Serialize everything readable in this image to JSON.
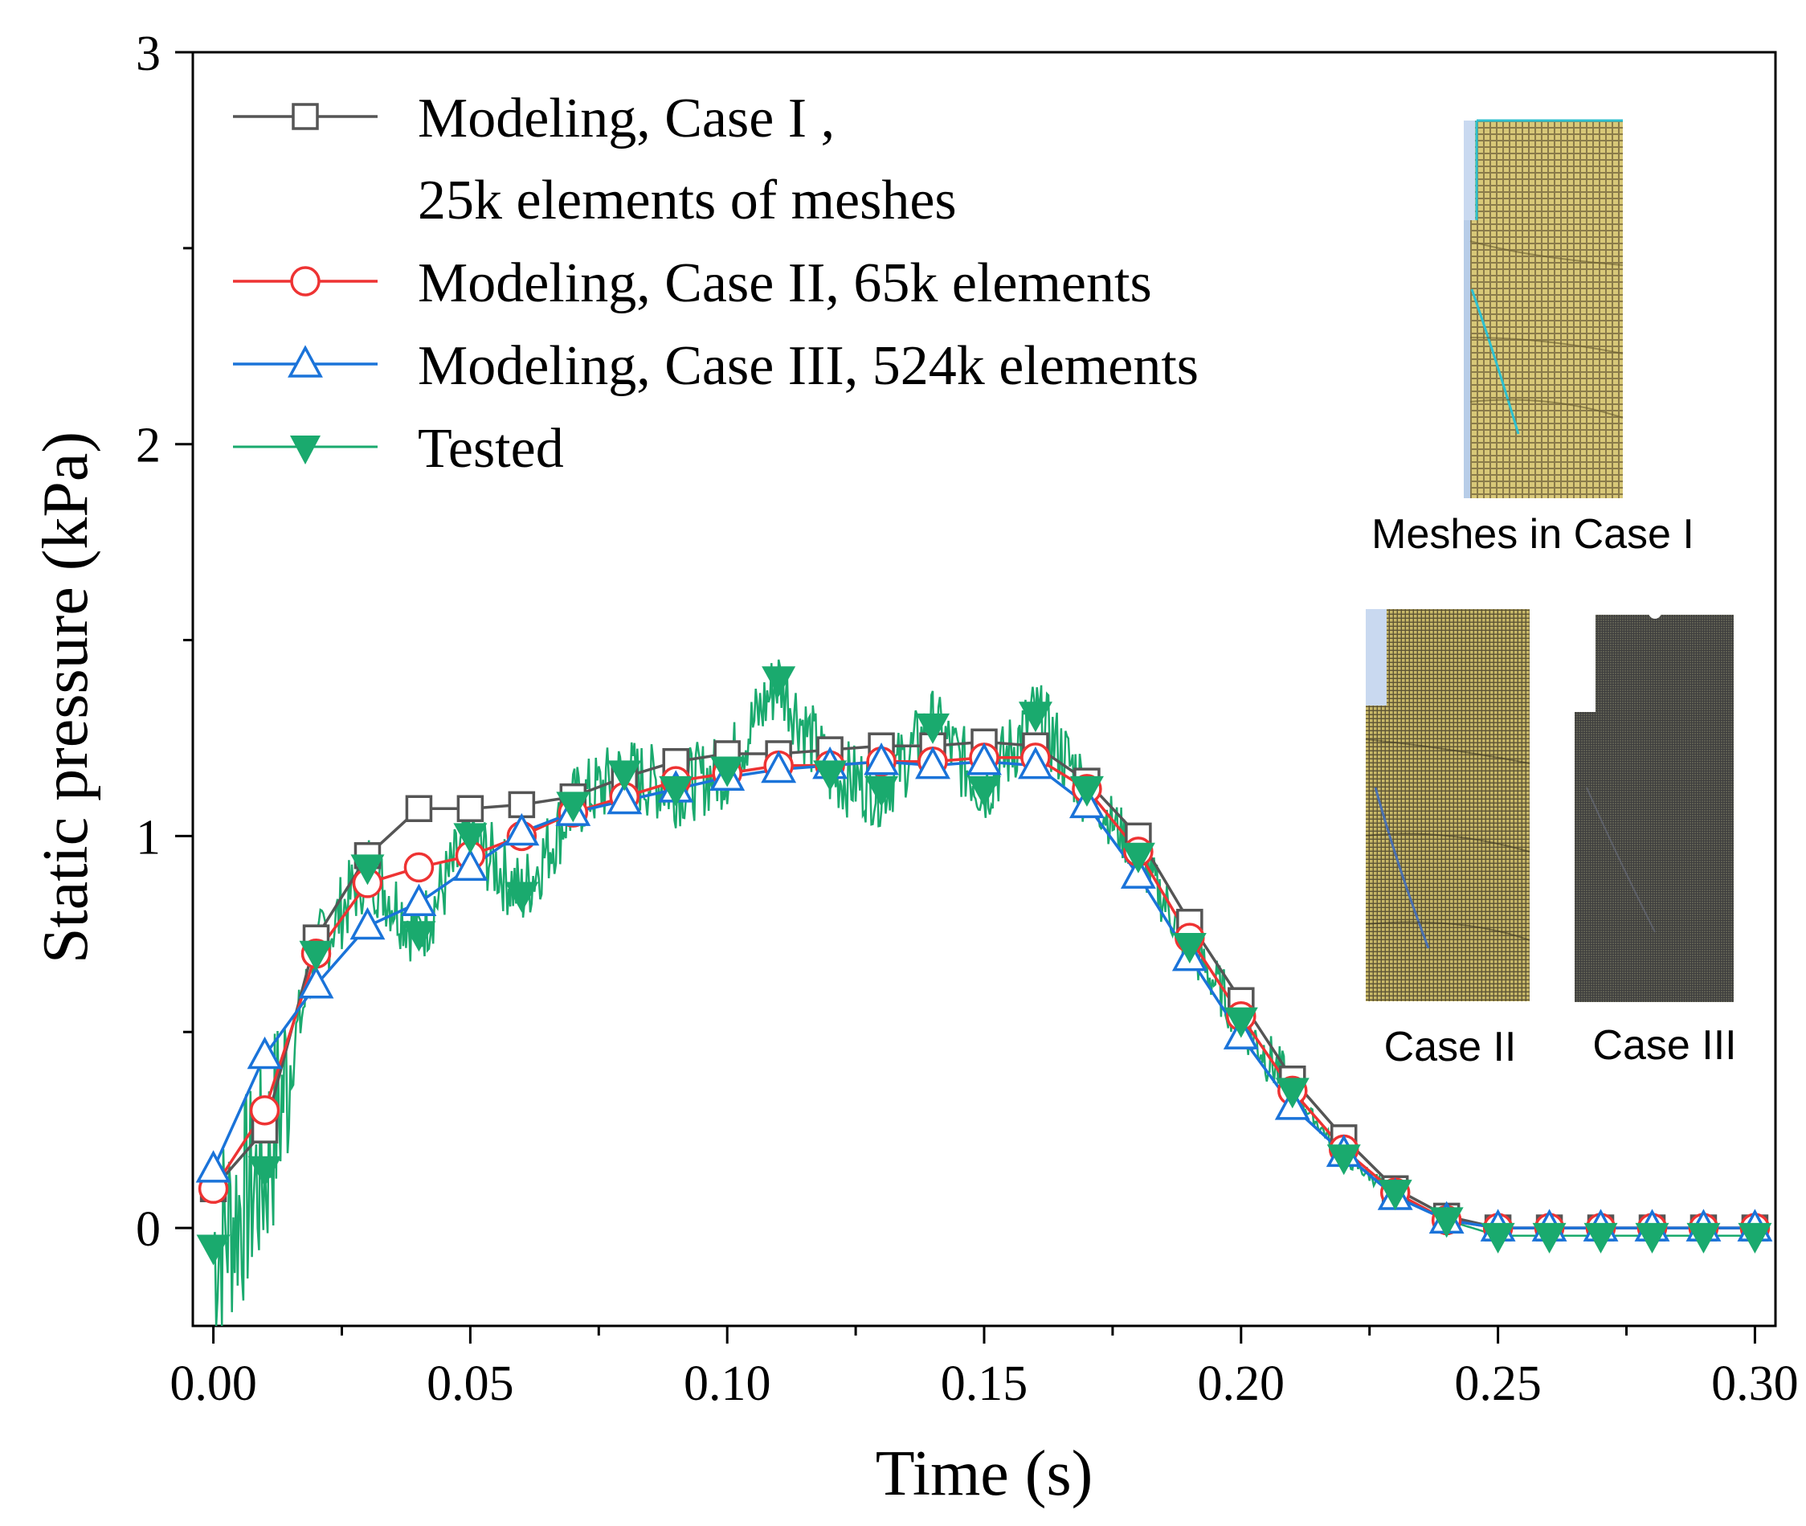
{
  "chart_data": {
    "type": "line",
    "xlabel": "Time (s)",
    "ylabel": "Static pressure (kPa)",
    "xlim": [
      -0.004,
      0.304
    ],
    "ylim": [
      -0.25,
      3.0
    ],
    "xticks": [
      0.0,
      0.05,
      0.1,
      0.15,
      0.2,
      0.25,
      0.3
    ],
    "xtick_labels": [
      "0.00",
      "0.05",
      "0.10",
      "0.15",
      "0.20",
      "0.25",
      "0.30"
    ],
    "yticks": [
      0,
      1,
      2,
      3
    ],
    "ytick_labels": [
      "0",
      "1",
      "2",
      "3"
    ],
    "legend_position": "top-left",
    "series": [
      {
        "name": "Modeling, Case I ,",
        "name_line2": "25k elements of meshes",
        "color": "#555555",
        "marker": "square",
        "x": [
          0.0,
          0.01,
          0.02,
          0.03,
          0.04,
          0.05,
          0.06,
          0.07,
          0.08,
          0.09,
          0.1,
          0.11,
          0.12,
          0.13,
          0.14,
          0.15,
          0.16,
          0.17,
          0.18,
          0.19,
          0.2,
          0.21,
          0.22,
          0.23,
          0.24,
          0.25,
          0.26,
          0.27,
          0.28,
          0.29,
          0.3
        ],
        "y": [
          0.1,
          0.25,
          0.74,
          0.95,
          1.07,
          1.07,
          1.08,
          1.1,
          1.15,
          1.19,
          1.21,
          1.21,
          1.22,
          1.23,
          1.23,
          1.24,
          1.23,
          1.14,
          1.0,
          0.78,
          0.58,
          0.38,
          0.23,
          0.1,
          0.03,
          0.0,
          0.0,
          0.0,
          0.0,
          0.0,
          0.0
        ]
      },
      {
        "name": "Modeling, Case II, 65k elements",
        "color": "#ee3333",
        "marker": "circle",
        "x": [
          0.0,
          0.01,
          0.02,
          0.03,
          0.04,
          0.05,
          0.06,
          0.07,
          0.08,
          0.09,
          0.1,
          0.11,
          0.12,
          0.13,
          0.14,
          0.15,
          0.16,
          0.17,
          0.18,
          0.19,
          0.2,
          0.21,
          0.22,
          0.23,
          0.24,
          0.25,
          0.26,
          0.27,
          0.28,
          0.29,
          0.3
        ],
        "y": [
          0.1,
          0.3,
          0.7,
          0.88,
          0.92,
          0.95,
          1.0,
          1.06,
          1.1,
          1.14,
          1.16,
          1.18,
          1.18,
          1.19,
          1.19,
          1.2,
          1.2,
          1.12,
          0.96,
          0.74,
          0.54,
          0.35,
          0.2,
          0.09,
          0.02,
          0.0,
          0.0,
          0.0,
          0.0,
          0.0,
          0.0
        ]
      },
      {
        "name": "Modeling, Case III, 524k elements",
        "color": "#1a73d9",
        "marker": "triangle-up",
        "x": [
          0.0,
          0.01,
          0.02,
          0.03,
          0.04,
          0.05,
          0.06,
          0.07,
          0.08,
          0.09,
          0.1,
          0.11,
          0.12,
          0.13,
          0.14,
          0.15,
          0.16,
          0.17,
          0.18,
          0.19,
          0.2,
          0.21,
          0.22,
          0.23,
          0.24,
          0.25,
          0.26,
          0.27,
          0.28,
          0.29,
          0.3
        ],
        "y": [
          0.15,
          0.44,
          0.62,
          0.77,
          0.83,
          0.92,
          1.01,
          1.06,
          1.09,
          1.12,
          1.15,
          1.17,
          1.18,
          1.19,
          1.18,
          1.19,
          1.18,
          1.08,
          0.9,
          0.69,
          0.49,
          0.31,
          0.19,
          0.08,
          0.02,
          0.0,
          0.0,
          0.0,
          0.0,
          0.0,
          0.0
        ]
      },
      {
        "name": "Tested",
        "color": "#1aaa6e",
        "marker": "triangle-down-filled",
        "x": [
          0.0,
          0.01,
          0.02,
          0.03,
          0.04,
          0.05,
          0.06,
          0.07,
          0.08,
          0.09,
          0.1,
          0.11,
          0.12,
          0.13,
          0.14,
          0.15,
          0.16,
          0.17,
          0.18,
          0.19,
          0.2,
          0.21,
          0.22,
          0.23,
          0.24,
          0.25,
          0.26,
          0.27,
          0.28,
          0.29,
          0.3
        ],
        "y": [
          -0.05,
          0.15,
          0.7,
          0.92,
          0.75,
          1.0,
          0.85,
          1.08,
          1.16,
          1.12,
          1.17,
          1.4,
          1.16,
          1.12,
          1.28,
          1.12,
          1.31,
          1.12,
          0.95,
          0.72,
          0.53,
          0.35,
          0.18,
          0.09,
          0.02,
          -0.02,
          -0.02,
          -0.02,
          -0.02,
          -0.02,
          -0.02
        ]
      }
    ],
    "annotations": [
      "Meshes in Case I",
      "Case II",
      "Case III"
    ]
  }
}
